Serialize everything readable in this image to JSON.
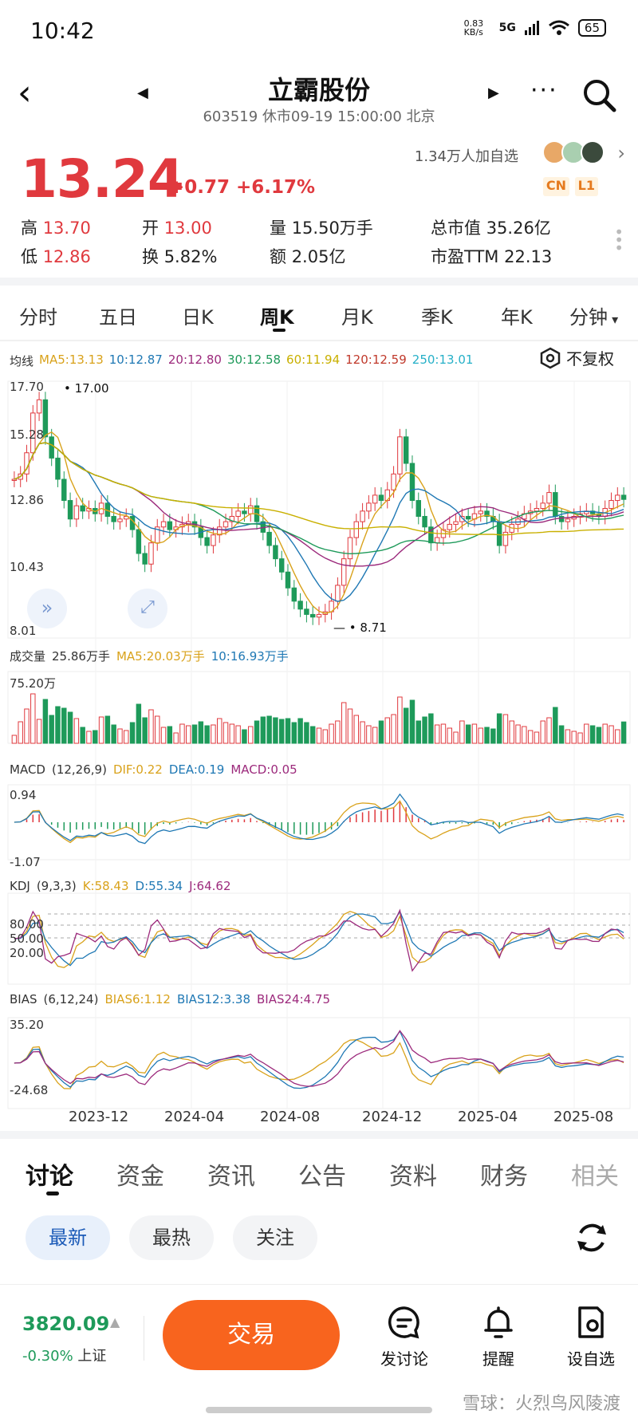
{
  "status_bar": {
    "time": "10:42",
    "net_speed": "0.83 KB/s",
    "network": "5G",
    "battery": "65"
  },
  "header": {
    "title": "立霸股份",
    "subtitle": "603519 休市09-19 15:00:00 北京"
  },
  "quote": {
    "price": "13.24",
    "change": "+0.77 +6.17%",
    "followers": "1.34万人加自选",
    "badges": [
      "CN",
      "L1"
    ],
    "stats": {
      "high_label": "高",
      "high": "13.70",
      "open_label": "开",
      "open": "13.00",
      "vol_label": "量",
      "vol": "15.50万手",
      "mcap_label": "总市值",
      "mcap": "35.26亿",
      "low_label": "低",
      "low": "12.86",
      "turnover_label": "换",
      "turnover": "5.82%",
      "amount_label": "额",
      "amount": "2.05亿",
      "pe_label": "市盈TTM",
      "pe": "22.13"
    }
  },
  "period_tabs": [
    "分时",
    "五日",
    "日K",
    "周K",
    "月K",
    "季K",
    "年K",
    "分钟"
  ],
  "active_period": "周K",
  "ma_legend": {
    "label": "均线",
    "items": [
      {
        "text": "MA5:13.13",
        "color": "#d9a21b"
      },
      {
        "text": "10:12.87",
        "color": "#1f78b4"
      },
      {
        "text": "20:12.80",
        "color": "#9c2a7c"
      },
      {
        "text": "30:12.58",
        "color": "#1e9a5a"
      },
      {
        "text": "60:11.94",
        "color": "#c9b000"
      },
      {
        "text": "120:12.59",
        "color": "#c0392b"
      },
      {
        "text": "250:13.01",
        "color": "#26b0c8"
      }
    ],
    "adjust": "不复权"
  },
  "kline_axis": {
    "y_ticks": [
      "17.70",
      "15.28",
      "12.86",
      "10.43",
      "8.01"
    ],
    "max_mark": "17.00",
    "min_mark": "8.71"
  },
  "volume": {
    "label": "成交量",
    "current": "25.86万手",
    "ma5": "MA5:20.03万手",
    "ma10": "10:16.93万手",
    "max_tick": "75.20万"
  },
  "macd": {
    "label": "MACD",
    "params": "(12,26,9)",
    "dif": "DIF:0.22",
    "dea": "DEA:0.19",
    "macd": "MACD:0.05",
    "top_tick": "0.94",
    "bottom_tick": "-1.07"
  },
  "kdj": {
    "label": "KDJ",
    "params": "(9,3,3)",
    "k": "K:58.43",
    "d": "D:55.34",
    "j": "J:64.62",
    "ticks": [
      "80.00",
      "50.00",
      "20.00"
    ]
  },
  "bias": {
    "label": "BIAS",
    "params": "(6,12,24)",
    "b6": "BIAS6:1.12",
    "b12": "BIAS12:3.38",
    "b24": "BIAS24:4.75",
    "top_tick": "35.20",
    "bottom_tick": "-24.68"
  },
  "x_dates": [
    "2023-12",
    "2024-04",
    "2024-08",
    "2024-12",
    "2025-04",
    "2025-08"
  ],
  "content_tabs": [
    "讨论",
    "资金",
    "资讯",
    "公告",
    "资料",
    "财务",
    "相关"
  ],
  "filters": [
    "最新",
    "最热",
    "关注"
  ],
  "index": {
    "value": "3820.09",
    "change": "-0.30%",
    "name": "上证"
  },
  "trade_label": "交易",
  "actions": [
    "发讨论",
    "提醒",
    "设自选"
  ],
  "watermark": "雪球：火烈鸟风陵渡",
  "colors": {
    "up": "#e0393e",
    "down": "#1e9a5a",
    "trade": "#f8641e"
  }
}
